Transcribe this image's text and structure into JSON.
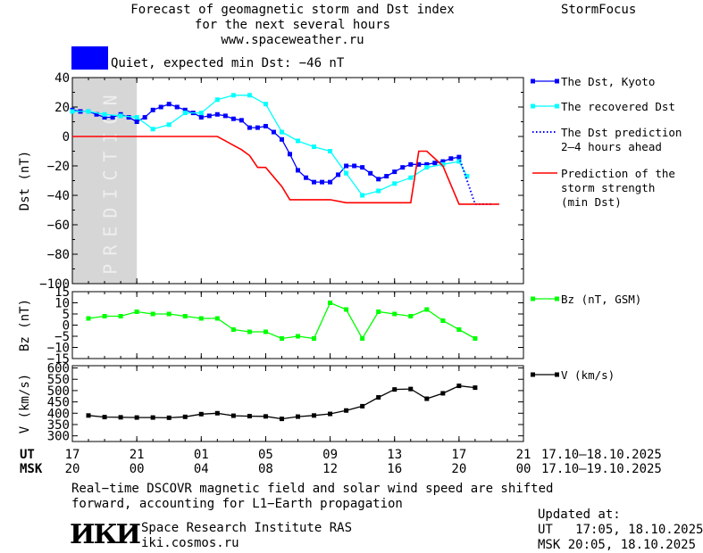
{
  "header": {
    "title_lines": [
      "Forecast of geomagnetic storm and Dst index",
      "for the next several hours",
      "www.spaceweather.ru"
    ],
    "brand": "StormFocus",
    "status_text": "Quiet, expected min Dst: −46 nT",
    "status_color": "#0000ff"
  },
  "chart_data": [
    {
      "type": "line",
      "ylabel": "Dst (nT)",
      "ylim": [
        -100,
        40
      ],
      "yticks": [
        "40",
        "20",
        "0",
        "−20",
        "−40",
        "−60",
        "−80",
        "−100"
      ],
      "prediction_label": "PREDICTION",
      "prediction_shade": [
        17,
        21
      ],
      "x_hours_ut": [
        17,
        21
      ],
      "series": [
        {
          "name": "The Dst, Kyoto",
          "color": "#0000ff",
          "style": "line-square",
          "x": [
            17.0,
            17.5,
            18.0,
            18.5,
            19.0,
            19.5,
            20.0,
            20.5,
            21.0,
            21.5,
            22.0,
            22.5,
            23.0,
            23.5,
            24.0,
            24.5,
            25.0,
            25.5,
            26.0,
            26.5,
            27.0,
            27.5,
            28.0,
            28.5,
            29.0,
            29.5,
            30.0,
            30.5,
            31.0,
            31.5,
            32.0,
            32.5,
            33.0,
            33.5,
            34.0,
            34.5,
            35.0,
            35.5,
            36.0,
            36.5,
            37.0,
            37.5,
            38.0,
            38.5,
            39.0,
            39.5,
            40.0,
            40.5,
            41.0
          ],
          "y": [
            18,
            17,
            17,
            15,
            13,
            13,
            15,
            13,
            10,
            13,
            18,
            20,
            22,
            20,
            18,
            16,
            13,
            14,
            15,
            14,
            12,
            11,
            6,
            6,
            7,
            3,
            -2,
            -12,
            -23,
            -28,
            -31,
            -31,
            -31,
            -26,
            -20,
            -20,
            -21,
            -25,
            -29,
            -27,
            -24,
            -21,
            -19,
            -19,
            -19,
            -18,
            -17,
            -15,
            -14
          ]
        },
        {
          "name": "The recovered Dst",
          "color": "#00ffff",
          "style": "line-square",
          "x": [
            17.0,
            18.0,
            19.0,
            20.0,
            21.0,
            22.0,
            23.0,
            24.0,
            25.0,
            26.0,
            27.0,
            28.0,
            29.0,
            30.0,
            31.0,
            32.0,
            33.0,
            34.0,
            35.0,
            36.0,
            37.0,
            38.0,
            39.0,
            40.0,
            41.0,
            41.5
          ],
          "y": [
            17,
            17,
            15,
            14,
            13,
            5,
            8,
            16,
            16,
            25,
            28,
            28,
            22,
            3,
            -3,
            -7,
            -10,
            -25,
            -40,
            -37,
            -32,
            -28,
            -21,
            -19,
            -17,
            -27
          ]
        },
        {
          "name": "The Dst prediction 2–4 hours ahead",
          "color": "#0000ff",
          "style": "dotted",
          "x": [
            41.0,
            41.5,
            42.0,
            42.5,
            43.0
          ],
          "y": [
            -14,
            -30,
            -46,
            -46,
            -46
          ]
        },
        {
          "name": "Prediction of the storm strength (min Dst)",
          "color": "#ff0000",
          "style": "step",
          "x": [
            17.0,
            26.0,
            27.0,
            27.5,
            28.0,
            28.5,
            29.0,
            30.0,
            30.5,
            31.0,
            33.0,
            34.0,
            35.0,
            36.0,
            38.0,
            38.5,
            39.0,
            40.0,
            41.0,
            43.5
          ],
          "y": [
            0,
            0,
            -6,
            -9,
            -13,
            -21,
            -21,
            -34,
            -43,
            -43,
            -43,
            -45,
            -45,
            -45,
            -45,
            -10,
            -10,
            -20,
            -46,
            -46
          ]
        }
      ]
    },
    {
      "type": "line",
      "ylabel": "Bz (nT)",
      "ylim": [
        -15,
        15
      ],
      "yticks": [
        "15",
        "10",
        "5",
        "0",
        "−5",
        "−10",
        "−15"
      ],
      "series": [
        {
          "name": "Bz (nT, GSM)",
          "color": "#00ff00",
          "style": "line-square",
          "x": [
            18.0,
            19.0,
            20.0,
            21.0,
            22.0,
            23.0,
            24.0,
            25.0,
            26.0,
            27.0,
            28.0,
            29.0,
            30.0,
            31.0,
            32.0,
            33.0,
            34.0,
            35.0,
            36.0,
            37.0,
            38.0,
            39.0,
            40.0,
            41.0,
            42.0
          ],
          "y": [
            3,
            4,
            4,
            6,
            5,
            5,
            4,
            3,
            3,
            -2,
            -3,
            -3,
            -6,
            -5,
            -6,
            10,
            7,
            -6,
            6,
            5,
            4,
            7,
            2,
            -2,
            -6
          ]
        }
      ]
    },
    {
      "type": "line",
      "ylabel": "V (km/s)",
      "ylim": [
        275,
        610
      ],
      "yticks": [
        "600",
        "550",
        "500",
        "450",
        "400",
        "350",
        "300"
      ],
      "series": [
        {
          "name": "V (km/s)",
          "color": "#000000",
          "style": "line-square",
          "x": [
            18.0,
            19.0,
            20.0,
            21.0,
            22.0,
            23.0,
            24.0,
            25.0,
            26.0,
            27.0,
            28.0,
            29.0,
            30.0,
            31.0,
            32.0,
            33.0,
            34.0,
            35.0,
            36.0,
            37.0,
            38.0,
            39.0,
            40.0,
            41.0,
            42.0
          ],
          "y": [
            390,
            383,
            382,
            381,
            381,
            380,
            384,
            396,
            400,
            389,
            387,
            386,
            375,
            385,
            390,
            397,
            412,
            431,
            470,
            505,
            507,
            464,
            488,
            521,
            513
          ]
        }
      ]
    }
  ],
  "x_axis": {
    "ticks_pos": [
      17,
      21,
      25,
      29,
      33,
      37,
      41,
      45
    ],
    "ut_label": "UT",
    "msk_label": "MSK",
    "ut_ticks": [
      "17",
      "21",
      "01",
      "05",
      "09",
      "13",
      "17",
      "21"
    ],
    "msk_ticks": [
      "20",
      "00",
      "04",
      "08",
      "12",
      "16",
      "20",
      "00"
    ],
    "ut_range": "17.10–18.10.2025",
    "msk_range": "17.10–19.10.2025"
  },
  "footer": {
    "note_lines": [
      "Real−time DSCOVR magnetic field and solar wind speed are shifted",
      "forward, accounting for L1−Earth propagation"
    ],
    "logo": "ИКИ",
    "institute": "Space Research Institute RAS",
    "site": "iki.cosmos.ru",
    "updated_label": "Updated at:",
    "updated_ut": "UT   17:05, 18.10.2025",
    "updated_msk": "MSK 20:05, 18.10.2025"
  }
}
